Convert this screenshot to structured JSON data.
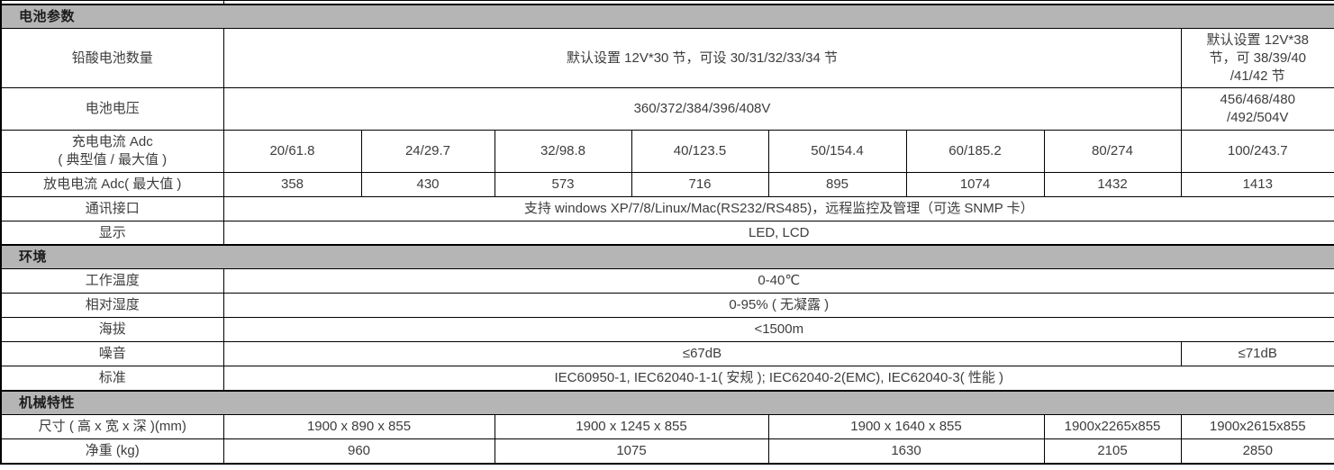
{
  "table": {
    "rows": [
      {
        "kind": "sliver",
        "id": "top-sliver"
      },
      {
        "kind": "section",
        "id": "battery-params",
        "label": "电池参数"
      },
      {
        "kind": "data",
        "id": "lead-acid-battery-count",
        "label": "铅酸电池数量",
        "cells": [
          {
            "text": "默认设置 12V*30 节，可设 30/31/32/33/34 节",
            "span": 7
          },
          {
            "text": "默认设置 12V*38\n节，可 38/39/40\n/41/42 节",
            "span": 1
          }
        ]
      },
      {
        "kind": "data",
        "id": "battery-voltage",
        "label": "电池电压",
        "cells": [
          {
            "text": "360/372/384/396/408V",
            "span": 7
          },
          {
            "text": "456/468/480\n/492/504V",
            "span": 1
          }
        ]
      },
      {
        "kind": "data",
        "id": "charge-current",
        "label": "充电电流 Adc\n( 典型值 / 最大值 )",
        "cells": [
          {
            "text": "20/61.8"
          },
          {
            "text": "24/29.7"
          },
          {
            "text": "32/98.8"
          },
          {
            "text": "40/123.5"
          },
          {
            "text": "50/154.4"
          },
          {
            "text": "60/185.2"
          },
          {
            "text": "80/274"
          },
          {
            "text": "100/243.7"
          }
        ]
      },
      {
        "kind": "data",
        "id": "discharge-current",
        "label": "放电电流 Adc( 最大值 )",
        "cells": [
          {
            "text": "358"
          },
          {
            "text": "430"
          },
          {
            "text": "573"
          },
          {
            "text": "716"
          },
          {
            "text": "895"
          },
          {
            "text": "1074"
          },
          {
            "text": "1432"
          },
          {
            "text": "1413"
          }
        ]
      },
      {
        "kind": "data",
        "id": "comm-interface",
        "label": "通讯接口",
        "cells": [
          {
            "text": "支持 windows XP/7/8/Linux/Mac(RS232/RS485)，远程监控及管理（可选 SNMP 卡）",
            "span": 8
          }
        ]
      },
      {
        "kind": "data",
        "id": "display",
        "label": "显示",
        "cells": [
          {
            "text": "LED, LCD",
            "span": 8
          }
        ]
      },
      {
        "kind": "section",
        "id": "environment",
        "label": "环境"
      },
      {
        "kind": "data",
        "id": "operating-temp",
        "label": "工作温度",
        "cells": [
          {
            "text": "0-40℃",
            "span": 8
          }
        ]
      },
      {
        "kind": "data",
        "id": "relative-humidity",
        "label": "相对湿度",
        "cells": [
          {
            "text": "0-95% ( 无凝露 )",
            "span": 8
          }
        ]
      },
      {
        "kind": "data",
        "id": "altitude",
        "label": "海拔",
        "cells": [
          {
            "text": "<1500m",
            "span": 8
          }
        ]
      },
      {
        "kind": "data",
        "id": "noise",
        "label": "噪音",
        "cells": [
          {
            "text": "≤67dB",
            "span": 7
          },
          {
            "text": "≤71dB",
            "span": 1
          }
        ]
      },
      {
        "kind": "data",
        "id": "standard",
        "label": "标准",
        "cells": [
          {
            "text": "IEC60950-1, IEC62040-1-1( 安规 ); IEC62040-2(EMC), IEC62040-3( 性能 )",
            "span": 8
          }
        ]
      },
      {
        "kind": "section",
        "id": "mechanical",
        "label": "机械特性"
      },
      {
        "kind": "data",
        "id": "dimensions",
        "label": "尺寸 ( 高 x 宽 x 深 )(mm)",
        "cells": [
          {
            "text": "1900 x 890 x 855",
            "span": 2
          },
          {
            "text": "1900 x 1245 x 855",
            "span": 2
          },
          {
            "text": "1900 x 1640 x 855",
            "span": 2
          },
          {
            "text": "1900x2265x855",
            "span": 1
          },
          {
            "text": "1900x2615x855",
            "span": 1
          }
        ]
      },
      {
        "kind": "data",
        "id": "net-weight",
        "label": "净重 (kg)",
        "cells": [
          {
            "text": "960",
            "span": 2
          },
          {
            "text": "1075",
            "span": 2
          },
          {
            "text": "1630",
            "span": 2
          },
          {
            "text": "2105",
            "span": 1
          },
          {
            "text": "2850",
            "span": 1
          }
        ]
      }
    ],
    "colors": {
      "section_header_bg": "#b5b5b5",
      "border": "#000000",
      "text": "#3d3d3d"
    }
  }
}
